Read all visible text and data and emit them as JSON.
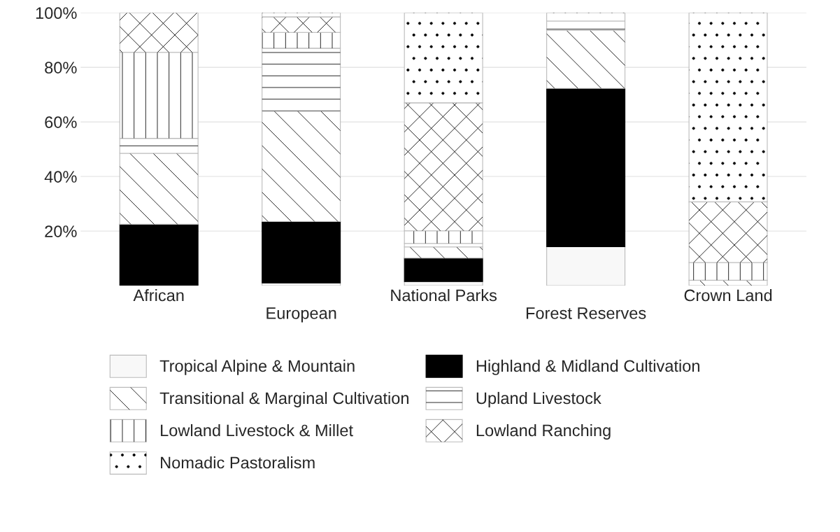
{
  "chart_data": {
    "type": "bar",
    "stacked": true,
    "categories": [
      "African",
      "European",
      "National Parks",
      "Forest Reserves",
      "Crown Land"
    ],
    "series": [
      {
        "name": "Tropical Alpine & Mountain",
        "color": "#f8f8f8",
        "values": [
          null,
          1,
          1.5,
          14.3,
          0
        ]
      },
      {
        "name": "Highland & Midland Cultivation",
        "color": "#000000",
        "values": [
          22.5,
          22.5,
          8.6,
          58,
          0
        ]
      },
      {
        "name": "Transitional & Marginal Cultivation",
        "color": "#ffffff",
        "values": [
          26,
          40.5,
          4.1,
          21.3,
          2
        ]
      },
      {
        "name": "Upland Livestock",
        "color": "#ffffff",
        "values": [
          5.5,
          23,
          1.3,
          3.4,
          0
        ]
      },
      {
        "name": "Lowland Livestock & Millet",
        "color": "#ffffff",
        "values": [
          31.5,
          5.8,
          4.6,
          0,
          6.5
        ]
      },
      {
        "name": "Lowland Ranching",
        "color": "#ffffff",
        "values": [
          14.5,
          5.7,
          46.9,
          0,
          22.2
        ]
      },
      {
        "name": "Nomadic Pastoralism",
        "color": "#ffffff",
        "values": [
          0,
          1.5,
          33,
          3,
          69.3
        ]
      }
    ],
    "ylim": [
      0,
      100
    ],
    "yticks": [
      {
        "value": 20,
        "label": "20%"
      },
      {
        "value": 40,
        "label": "40%"
      },
      {
        "value": 60,
        "label": "60%"
      },
      {
        "value": 80,
        "label": "80%"
      },
      {
        "value": 100,
        "label": "100%"
      }
    ],
    "grid": "y",
    "legend": "bottom"
  }
}
